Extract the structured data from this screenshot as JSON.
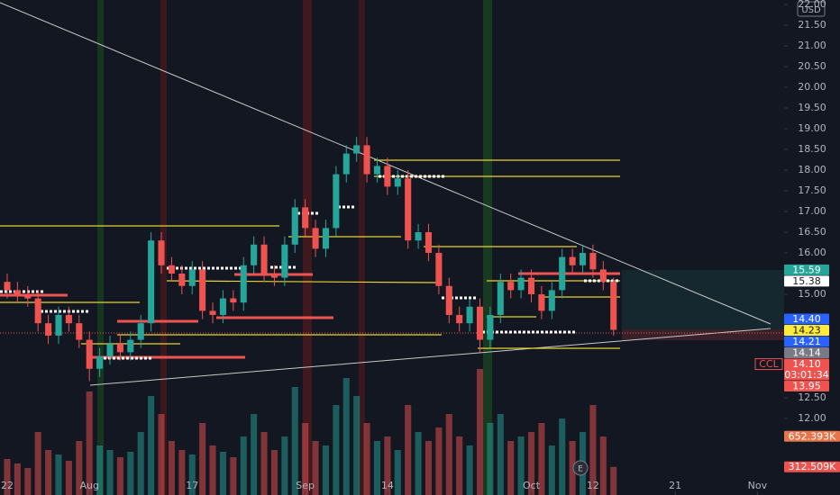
{
  "chart_data": {
    "type": "candlestick",
    "symbol": "CCL",
    "currency": "USD",
    "earnings_marker": "E",
    "x": [
      0,
      1,
      2,
      3,
      4,
      5,
      6,
      7,
      8,
      9,
      10,
      11,
      12,
      13,
      14,
      15,
      16,
      17,
      18,
      19,
      20,
      21,
      22,
      23,
      24,
      25,
      26,
      27,
      28,
      29,
      30,
      31,
      32,
      33,
      34,
      35,
      36,
      37,
      38,
      39,
      40,
      41,
      42,
      43,
      44,
      45,
      46,
      47,
      48,
      49,
      50,
      51,
      52,
      53,
      54,
      55,
      56,
      57,
      58,
      59
    ],
    "open": [
      15.3,
      15.1,
      15.0,
      14.9,
      14.3,
      14.0,
      14.5,
      14.3,
      13.9,
      13.2,
      13.5,
      13.8,
      13.6,
      13.9,
      14.3,
      16.3,
      15.7,
      15.5,
      15.2,
      15.6,
      14.6,
      14.5,
      14.9,
      14.8,
      15.7,
      16.2,
      15.5,
      15.4,
      16.2,
      17.1,
      16.6,
      16.1,
      16.6,
      17.9,
      18.4,
      18.6,
      17.9,
      18.1,
      17.6,
      17.8,
      16.3,
      16.5,
      16.0,
      15.2,
      14.5,
      14.3,
      14.7,
      13.9,
      14.5,
      15.3,
      15.1,
      15.4,
      15.0,
      14.6,
      15.1,
      15.9,
      15.7,
      16.0,
      15.6,
      15.3
    ],
    "high": [
      15.5,
      15.3,
      15.2,
      15.1,
      14.5,
      14.7,
      14.7,
      14.5,
      14.1,
      13.7,
      14.0,
      14.0,
      14.1,
      14.5,
      16.5,
      16.5,
      15.9,
      15.7,
      15.8,
      15.8,
      14.8,
      15.1,
      15.1,
      15.9,
      16.4,
      16.4,
      15.7,
      16.4,
      17.3,
      17.3,
      16.8,
      16.8,
      18.1,
      18.6,
      18.8,
      18.8,
      18.3,
      18.3,
      18.0,
      18.0,
      16.7,
      16.7,
      16.2,
      15.4,
      14.7,
      14.9,
      14.9,
      14.7,
      15.5,
      15.5,
      15.6,
      15.6,
      15.2,
      15.3,
      16.1,
      16.1,
      16.2,
      16.2,
      15.8,
      15.4
    ],
    "low": [
      14.9,
      14.8,
      14.7,
      14.1,
      13.8,
      13.8,
      14.1,
      13.7,
      12.9,
      13.0,
      13.3,
      13.4,
      13.4,
      13.7,
      14.1,
      15.5,
      15.3,
      15.0,
      15.0,
      14.4,
      14.3,
      14.3,
      14.6,
      14.6,
      15.5,
      15.3,
      15.2,
      15.2,
      16.0,
      16.4,
      15.9,
      15.9,
      16.4,
      17.7,
      18.2,
      17.7,
      17.7,
      17.4,
      17.4,
      16.1,
      16.1,
      15.8,
      15.0,
      14.3,
      14.1,
      14.1,
      13.6,
      13.7,
      14.3,
      14.9,
      14.9,
      14.8,
      14.4,
      14.4,
      14.9,
      15.5,
      15.5,
      15.4,
      15.1,
      14.0
    ],
    "close": [
      15.1,
      15.0,
      14.9,
      14.3,
      14.0,
      14.5,
      14.3,
      13.9,
      13.2,
      13.5,
      13.8,
      13.6,
      13.9,
      14.3,
      16.3,
      15.7,
      15.5,
      15.2,
      15.6,
      14.6,
      14.5,
      14.9,
      14.8,
      15.7,
      16.2,
      15.5,
      15.4,
      16.2,
      17.1,
      16.6,
      16.1,
      16.6,
      17.9,
      18.4,
      18.6,
      17.9,
      18.1,
      17.6,
      17.8,
      16.3,
      16.5,
      16.0,
      15.2,
      14.5,
      14.3,
      14.7,
      13.9,
      14.5,
      15.3,
      15.1,
      15.4,
      15.0,
      14.6,
      15.1,
      15.9,
      15.7,
      16.0,
      15.6,
      15.3,
      14.14
    ],
    "volume": [
      400000,
      350000,
      300000,
      700000,
      500000,
      450000,
      380000,
      600000,
      1150000,
      550000,
      500000,
      420000,
      480000,
      700000,
      1100000,
      900000,
      600000,
      500000,
      450000,
      800000,
      550000,
      480000,
      420000,
      650000,
      900000,
      700000,
      500000,
      650000,
      1200000,
      800000,
      600000,
      550000,
      1000000,
      1300000,
      1100000,
      800000,
      600000,
      650000,
      500000,
      1000000,
      700000,
      600000,
      750000,
      900000,
      650000,
      550000,
      1400000,
      800000,
      900000,
      600000,
      650000,
      700000,
      800000,
      550000,
      850000,
      600000,
      700000,
      1000000,
      650000,
      312509
    ],
    "up_color": "#26a69a",
    "down_color": "#ef5350",
    "xlim": [
      -0.7,
      75.6
    ],
    "ylim": [
      10.15,
      22.11
    ],
    "volume_lim": [
      0,
      5500000
    ],
    "grid": false,
    "xticks": [
      {
        "value": 0,
        "label": "22"
      },
      {
        "value": 8,
        "label": "Aug"
      },
      {
        "value": 18,
        "label": "17"
      },
      {
        "value": 29,
        "label": "Sep"
      },
      {
        "value": 37,
        "label": "14"
      },
      {
        "value": 51,
        "label": "Oct"
      },
      {
        "value": 57,
        "label": "12"
      },
      {
        "value": 65,
        "label": "21"
      },
      {
        "value": 73,
        "label": "Nov"
      }
    ],
    "yticks": [
      {
        "value": 12,
        "label": "12.00"
      },
      {
        "value": 12.5,
        "label": "12.50"
      },
      {
        "value": 15,
        "label": "15.00"
      },
      {
        "value": 16,
        "label": "16.00"
      },
      {
        "value": 16.5,
        "label": "16.50"
      },
      {
        "value": 17,
        "label": "17.00"
      },
      {
        "value": 17.5,
        "label": "17.50"
      },
      {
        "value": 18,
        "label": "18.00"
      },
      {
        "value": 18.5,
        "label": "18.50"
      },
      {
        "value": 19,
        "label": "19.00"
      },
      {
        "value": 19.5,
        "label": "19.50"
      },
      {
        "value": 20,
        "label": "20.00"
      },
      {
        "value": 20.5,
        "label": "20.50"
      },
      {
        "value": 21,
        "label": "21.00"
      },
      {
        "value": 21.5,
        "label": "21.50"
      },
      {
        "value": 22,
        "label": "22.00"
      }
    ],
    "price_tags": [
      {
        "value": 15.59,
        "label": "15.59",
        "color": "#26a69a",
        "text_color": "#ffffff"
      },
      {
        "value": 15.38,
        "label": "15.38",
        "color": "#ffffff",
        "text_color": "#131722"
      },
      {
        "value": 14.4,
        "label": "14.40",
        "color": "#2962ff",
        "text_color": "#ffffff"
      },
      {
        "value": 14.23,
        "label": "14.23",
        "color": "#ffeb3b",
        "text_color": "#131722"
      },
      {
        "value": 14.21,
        "label": "14.21",
        "color": "#2962ff",
        "text_color": "#ffffff"
      },
      {
        "value": 14.14,
        "label": "14.14",
        "color": "#787b86",
        "text_color": "#ffffff"
      },
      {
        "value": 14.1,
        "label": "14.10",
        "color": "#ef5350",
        "text_color": "#ffffff",
        "countdown": "03:01:34"
      },
      {
        "value": 13.95,
        "label": "13.95",
        "color": "#ef5350",
        "text_color": "#ffffff"
      }
    ],
    "volume_tags": [
      {
        "value": 652393,
        "label": "652.393K",
        "color": "#e8744a"
      },
      {
        "value": 312509,
        "label": "312.509K",
        "color": "#ef5350"
      }
    ]
  }
}
